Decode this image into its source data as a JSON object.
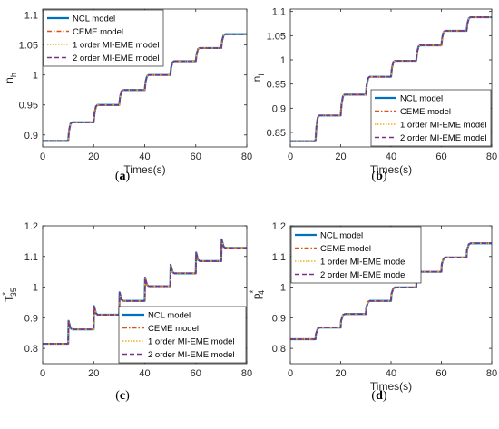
{
  "legend_labels": [
    "NCL model",
    "CEME model",
    "1 order MI-EME model",
    "2 order MI-EME model"
  ],
  "chart_data": [
    {
      "type": "line",
      "panel": "(a)",
      "panel_letter": "a",
      "xlabel": "Times(s)",
      "ylabel": "n",
      "ylabel_sub": "h",
      "ylabel_sup": "",
      "xlim": [
        0,
        80
      ],
      "ylim": [
        0.88,
        1.11
      ],
      "xticks": [
        0,
        20,
        40,
        60,
        80
      ],
      "yticks": [
        0.9,
        0.95,
        1.0,
        1.05,
        1.1
      ],
      "ytick_labels": [
        "0.9",
        "0.95",
        "1",
        "1.05",
        "1.1"
      ],
      "legend_position": "top-left",
      "step_times": [
        10,
        20,
        30,
        40,
        50,
        60,
        70
      ],
      "levels": [
        0.89,
        0.921,
        0.95,
        0.975,
        1.0,
        1.023,
        1.045,
        1.068
      ],
      "overshoot": 0,
      "series": [
        {
          "name": "NCL model",
          "color": "#0072BD",
          "dash": "",
          "width": 2.2
        },
        {
          "name": "CEME model",
          "color": "#D95319",
          "dash": "5,2,1.5,2",
          "width": 1.4
        },
        {
          "name": "1 order MI-EME model",
          "color": "#EDB120",
          "dash": "1.5,1.5",
          "width": 1.6
        },
        {
          "name": "2 order MI-EME model",
          "color": "#7E2F8E",
          "dash": "5,3",
          "width": 1.5
        }
      ]
    },
    {
      "type": "line",
      "panel": "(b)",
      "panel_letter": "b",
      "xlabel": "Times(s)",
      "ylabel": "n",
      "ylabel_sub": "l",
      "ylabel_sup": "",
      "xlim": [
        0,
        80
      ],
      "ylim": [
        0.82,
        1.105
      ],
      "xticks": [
        0,
        20,
        40,
        60,
        80
      ],
      "yticks": [
        0.85,
        0.9,
        0.95,
        1.0,
        1.05,
        1.1
      ],
      "ytick_labels": [
        "0.85",
        "0.9",
        "0.95",
        "1",
        "1.05",
        "1.1"
      ],
      "legend_position": "bottom-right",
      "step_times": [
        10,
        20,
        30,
        40,
        50,
        60,
        70
      ],
      "levels": [
        0.832,
        0.885,
        0.928,
        0.965,
        0.998,
        1.03,
        1.06,
        1.088
      ],
      "overshoot": 0,
      "series": [
        {
          "name": "NCL model",
          "color": "#0072BD",
          "dash": "",
          "width": 2.2
        },
        {
          "name": "CEME model",
          "color": "#D95319",
          "dash": "5,2,1.5,2",
          "width": 1.4
        },
        {
          "name": "1 order MI-EME model",
          "color": "#EDB120",
          "dash": "1.5,1.5",
          "width": 1.6
        },
        {
          "name": "2 order MI-EME model",
          "color": "#7E2F8E",
          "dash": "5,3",
          "width": 1.5
        }
      ]
    },
    {
      "type": "line",
      "panel": "(c)",
      "panel_letter": "c",
      "xlabel": "",
      "ylabel": "T",
      "ylabel_sub": "35",
      "ylabel_sup": "*",
      "xlim": [
        0,
        80
      ],
      "ylim": [
        0.75,
        1.2
      ],
      "xticks": [
        0,
        20,
        40,
        60,
        80
      ],
      "yticks": [
        0.8,
        0.9,
        1.0,
        1.1,
        1.2
      ],
      "ytick_labels": [
        "0.8",
        "0.9",
        "1",
        "1.1",
        "1.2"
      ],
      "legend_position": "bottom-right",
      "step_times": [
        10,
        20,
        30,
        40,
        50,
        60,
        70
      ],
      "levels": [
        0.815,
        0.862,
        0.91,
        0.955,
        1.003,
        1.045,
        1.085,
        1.128
      ],
      "overshoot": 0.028,
      "series": [
        {
          "name": "NCL model",
          "color": "#0072BD",
          "dash": "",
          "width": 2.2
        },
        {
          "name": "CEME model",
          "color": "#D95319",
          "dash": "5,2,1.5,2",
          "width": 1.4
        },
        {
          "name": "1 order MI-EME model",
          "color": "#EDB120",
          "dash": "1.5,1.5",
          "width": 1.6
        },
        {
          "name": "2 order MI-EME model",
          "color": "#7E2F8E",
          "dash": "5,3",
          "width": 1.5
        }
      ]
    },
    {
      "type": "line",
      "panel": "(d)",
      "panel_letter": "d",
      "xlabel": "Times(s)",
      "ylabel": "p",
      "ylabel_sub": "4",
      "ylabel_sup": "*",
      "xlim": [
        0,
        80
      ],
      "ylim": [
        0.75,
        1.2
      ],
      "xticks": [
        0,
        20,
        40,
        60,
        80
      ],
      "yticks": [
        0.8,
        0.9,
        1.0,
        1.1,
        1.2
      ],
      "ytick_labels": [
        "0.8",
        "0.9",
        "1",
        "1.1",
        "1.2"
      ],
      "legend_position": "top-left",
      "step_times": [
        10,
        20,
        30,
        40,
        50,
        60,
        70
      ],
      "levels": [
        0.83,
        0.868,
        0.912,
        0.955,
        0.999,
        1.05,
        1.097,
        1.143
      ],
      "overshoot": -0.022,
      "series": [
        {
          "name": "NCL model",
          "color": "#0072BD",
          "dash": "",
          "width": 2.2
        },
        {
          "name": "CEME model",
          "color": "#D95319",
          "dash": "5,2,1.5,2",
          "width": 1.4
        },
        {
          "name": "1 order MI-EME model",
          "color": "#EDB120",
          "dash": "1.5,1.5",
          "width": 1.6
        },
        {
          "name": "2 order MI-EME model",
          "color": "#7E2F8E",
          "dash": "5,3",
          "width": 1.5
        }
      ]
    }
  ]
}
